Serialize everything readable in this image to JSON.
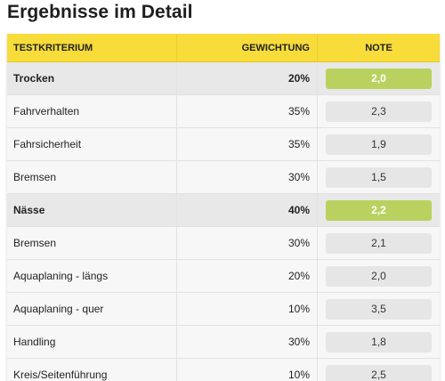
{
  "title": "Ergebnisse im Detail",
  "colors": {
    "header_bg": "#f7dc3a",
    "note_accent": "#b9d25f",
    "note_default": "#e6e6e6"
  },
  "table": {
    "headers": {
      "criterion": "TESTKRITERIUM",
      "weight": "GEWICHTUNG",
      "grade": "NOTE"
    },
    "rows": [
      {
        "criterion": "Trocken",
        "weight": "20%",
        "grade": "2,0",
        "group": true
      },
      {
        "criterion": "Fahrverhalten",
        "weight": "35%",
        "grade": "2,3",
        "group": false
      },
      {
        "criterion": "Fahrsicherheit",
        "weight": "35%",
        "grade": "1,9",
        "group": false
      },
      {
        "criterion": "Bremsen",
        "weight": "30%",
        "grade": "1,5",
        "group": false
      },
      {
        "criterion": "Nässe",
        "weight": "40%",
        "grade": "2,2",
        "group": true
      },
      {
        "criterion": "Bremsen",
        "weight": "30%",
        "grade": "2,1",
        "group": false
      },
      {
        "criterion": "Aquaplaning - längs",
        "weight": "20%",
        "grade": "2,0",
        "group": false
      },
      {
        "criterion": "Aquaplaning - quer",
        "weight": "10%",
        "grade": "3,5",
        "group": false
      },
      {
        "criterion": "Handling",
        "weight": "30%",
        "grade": "1,8",
        "group": false
      },
      {
        "criterion": "Kreis/Seitenführung",
        "weight": "10%",
        "grade": "2,5",
        "group": false
      }
    ]
  }
}
